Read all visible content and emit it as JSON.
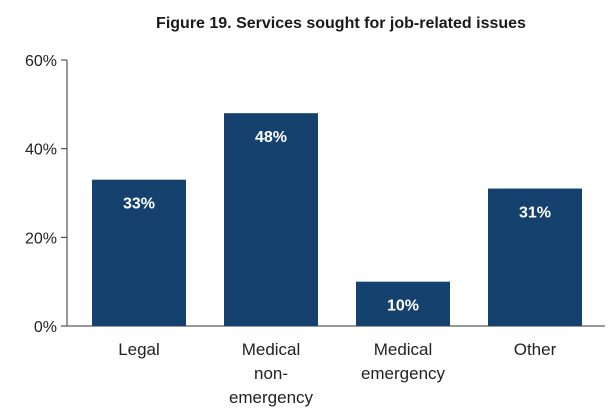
{
  "chart_data": {
    "type": "bar",
    "title": "Figure 19. Services sought for job-related issues",
    "xlabel": "",
    "ylabel": "",
    "categories": [
      [
        "Legal"
      ],
      [
        "Medical",
        "non-",
        "emergency"
      ],
      [
        "Medical",
        "emergency"
      ],
      [
        "Other"
      ]
    ],
    "values": [
      33,
      48,
      10,
      31
    ],
    "value_labels": [
      "33%",
      "48%",
      "10%",
      "31%"
    ],
    "ylim": [
      0,
      60
    ],
    "yticks": [
      0,
      20,
      40,
      60
    ],
    "ytick_labels": [
      "0%",
      "20%",
      "40%",
      "60%"
    ],
    "grid": false,
    "legend": "none",
    "bar_color": "#14416e"
  }
}
